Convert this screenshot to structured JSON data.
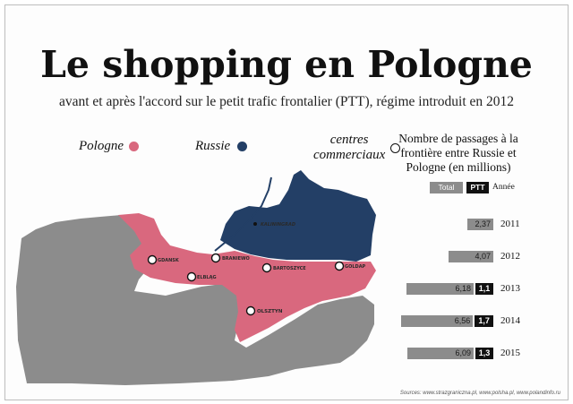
{
  "title": "Le shopping en Pologne",
  "subtitle": "avant et après l'accord sur le petit trafic frontalier (PTT), régime introduit en 2012",
  "legend": {
    "pologne": "Pologne",
    "russie": "Russie",
    "centres_line1": "centres",
    "centres_line2": "commerciaux"
  },
  "colors": {
    "pologne": "#d9687e",
    "russie": "#233f66",
    "other": "#8c8c8c",
    "ptt": "#111111",
    "total": "#8c8c8c"
  },
  "map": {
    "cities": [
      {
        "name": "GDANSK",
        "kind": "centre"
      },
      {
        "name": "ELBLĄG",
        "kind": "centre"
      },
      {
        "name": "BRANIEWO",
        "kind": "centre"
      },
      {
        "name": "BARTOSZYCE",
        "kind": "centre"
      },
      {
        "name": "GOLDAP",
        "kind": "centre"
      },
      {
        "name": "OLSZTYN",
        "kind": "centre"
      },
      {
        "name": "KALININGRAD",
        "kind": "city"
      }
    ]
  },
  "chart_panel": {
    "title_lines": [
      "Nombre de passages à la",
      "frontière entre Russie et",
      "Pologne (en millions)"
    ],
    "header_total": "Total",
    "header_ptt": "PTT",
    "header_year": "Année"
  },
  "chart_data": {
    "type": "bar",
    "title": "Nombre de passages à la frontière entre Russie et Pologne (en millions)",
    "categories": [
      "2011",
      "2012",
      "2013",
      "2014",
      "2015"
    ],
    "series": [
      {
        "name": "Total",
        "values": [
          2.37,
          4.07,
          6.18,
          6.56,
          6.09
        ],
        "labels": [
          "2,37",
          "4,07",
          "6,18",
          "6,56",
          "6,09"
        ]
      },
      {
        "name": "PTT",
        "values": [
          0,
          0,
          1.1,
          1.7,
          1.3
        ],
        "labels": [
          "",
          "",
          "1,1",
          "1,7",
          "1,3"
        ]
      }
    ]
  },
  "sources": "Sources: www.strazgraniczna.pl, www.polsha.pl, www.polandinfo.ru"
}
